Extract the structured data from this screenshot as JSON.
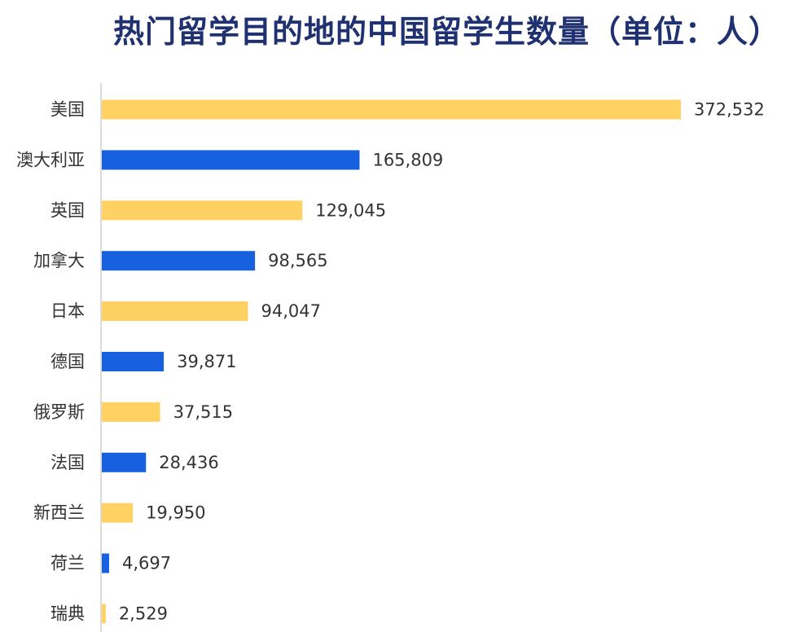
{
  "chart_data": {
    "type": "bar",
    "orientation": "horizontal",
    "title": "热门留学目的地的中国留学生数量（单位：人）",
    "xlabel": "",
    "ylabel": "",
    "grid": false,
    "xlim": [
      0,
      372532
    ],
    "categories": [
      "美国",
      "澳大利亚",
      "英国",
      "加拿大",
      "日本",
      "德国",
      "俄罗斯",
      "法国",
      "新西兰",
      "荷兰",
      "瑞典"
    ],
    "values": [
      372532,
      165809,
      129045,
      98565,
      94047,
      39871,
      37515,
      28436,
      19950,
      4697,
      2529
    ],
    "value_labels": [
      "372,532",
      "165,809",
      "129,045",
      "98,565",
      "94,047",
      "39,871",
      "37,515",
      "28,436",
      "19,950",
      "4,697",
      "2,529"
    ],
    "colors": [
      "#ffd163",
      "#1760e0",
      "#ffd163",
      "#1760e0",
      "#ffd163",
      "#1760e0",
      "#ffd163",
      "#1760e0",
      "#ffd163",
      "#1760e0",
      "#ffd163"
    ]
  }
}
